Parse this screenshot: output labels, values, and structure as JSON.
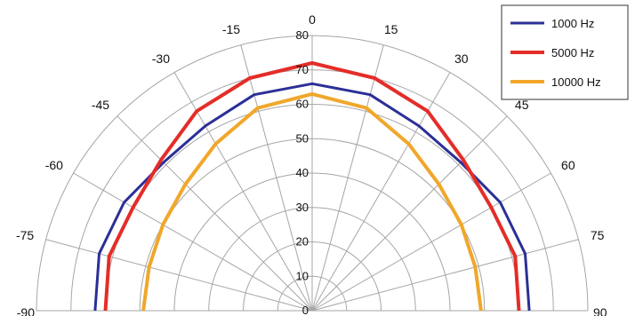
{
  "chart_data": {
    "type": "polar-line",
    "angles": [
      -90,
      -75,
      -60,
      -45,
      -30,
      -15,
      0,
      15,
      30,
      45,
      60,
      75,
      90
    ],
    "angle_tick_labels": [
      "-90",
      "-75",
      "-60",
      "-45",
      "-30",
      "-15",
      "0",
      "15",
      "30",
      "45",
      "60",
      "75",
      "90"
    ],
    "radial_ticks": [
      "0",
      "10",
      "20",
      "30",
      "40",
      "50",
      "60",
      "70",
      "80"
    ],
    "rlim": [
      0,
      80
    ],
    "series": [
      {
        "name": "1000 Hz",
        "color": "#2b2f96",
        "values": [
          63,
          64,
          63,
          61,
          62,
          65,
          66,
          65,
          62,
          61,
          63,
          64,
          63
        ]
      },
      {
        "name": "5000 Hz",
        "color": "#e42d28",
        "values": [
          60,
          61,
          60,
          62,
          67,
          70,
          72,
          70,
          67,
          62,
          60,
          61,
          60
        ]
      },
      {
        "name": "10000 Hz",
        "color": "#f0a72a",
        "values": [
          49,
          49,
          50,
          52,
          56,
          61,
          63,
          61,
          56,
          52,
          50,
          49,
          49
        ]
      }
    ],
    "legend_position": "top-right",
    "grid": true
  }
}
